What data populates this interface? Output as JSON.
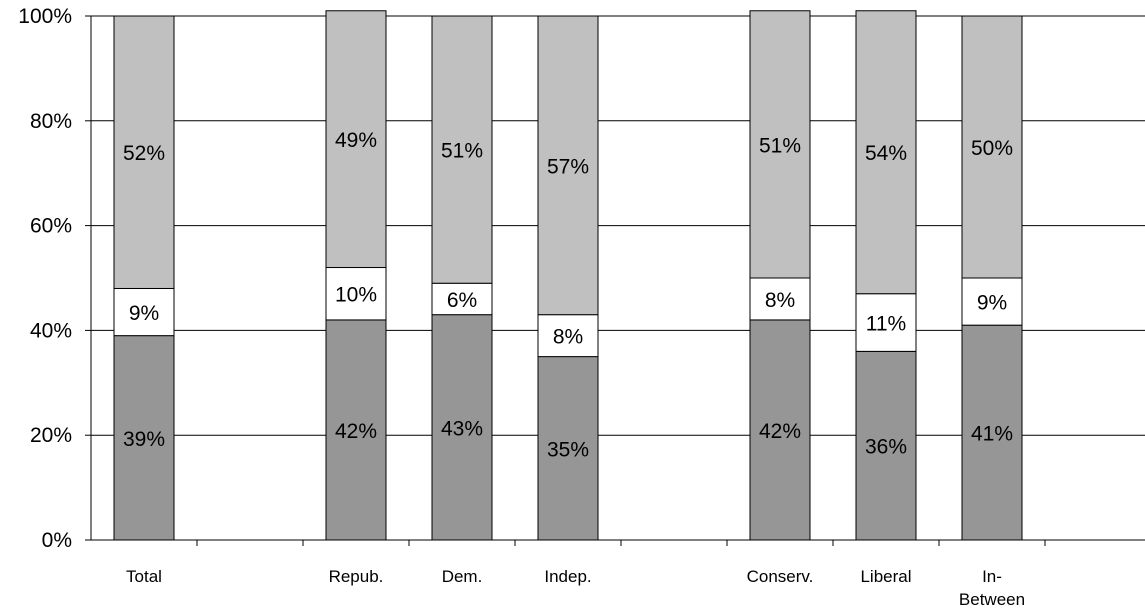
{
  "chart_data": {
    "type": "bar",
    "stacked": true,
    "categories": [
      "Total",
      "",
      "Repub.",
      "Dem.",
      "Indep.",
      "",
      "Conserv.",
      "Liberal",
      "In-Between",
      ""
    ],
    "series": [
      {
        "values": [
          39,
          null,
          42,
          43,
          35,
          null,
          42,
          36,
          41,
          null
        ],
        "labels": [
          "39%",
          "",
          "42%",
          "43%",
          "35%",
          "",
          "42%",
          "36%",
          "41%",
          ""
        ],
        "color": "#969696"
      },
      {
        "values": [
          9,
          null,
          10,
          6,
          8,
          null,
          8,
          11,
          9,
          null
        ],
        "labels": [
          "9%",
          "",
          "10%",
          "6%",
          "8%",
          "",
          "8%",
          "11%",
          "9%",
          ""
        ],
        "color": "#ffffff"
      },
      {
        "values": [
          52,
          null,
          49,
          51,
          57,
          null,
          51,
          54,
          50,
          null
        ],
        "labels": [
          "52%",
          "",
          "49%",
          "51%",
          "57%",
          "",
          "51%",
          "54%",
          "50%",
          ""
        ],
        "color": "#c0c0c0"
      }
    ],
    "y_ticks": [
      "0%",
      "20%",
      "40%",
      "60%",
      "80%",
      "100%"
    ],
    "ylim": [
      0,
      100
    ],
    "grid": true,
    "legend": "none"
  }
}
